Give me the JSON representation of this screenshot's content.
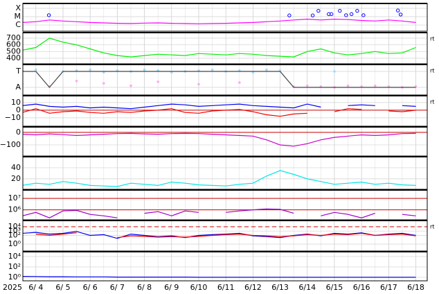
{
  "x_axis": {
    "year_label": "2025",
    "xlim": [
      -0.48,
      14.42
    ],
    "xticks": [
      {
        "value": 0,
        "label": "6/ 4"
      },
      {
        "value": 1,
        "label": "6/ 5"
      },
      {
        "value": 2,
        "label": "6/ 6"
      },
      {
        "value": 3,
        "label": "6/ 7"
      },
      {
        "value": 4,
        "label": "6/ 8"
      },
      {
        "value": 5,
        "label": "6/ 9"
      },
      {
        "value": 6,
        "label": "6/10"
      },
      {
        "value": 7,
        "label": "6/11"
      },
      {
        "value": 8,
        "label": "6/12"
      },
      {
        "value": 9,
        "label": "6/13"
      },
      {
        "value": 10,
        "label": "6/14"
      },
      {
        "value": 11,
        "label": "6/15"
      },
      {
        "value": 12,
        "label": "6/16"
      },
      {
        "value": 13,
        "label": "6/17"
      },
      {
        "value": 14,
        "label": "6/18"
      }
    ]
  },
  "chart_data": [
    {
      "type": "line",
      "log": true,
      "ylim": [
        1.8e-07,
        0.00038
      ],
      "yticks": [
        {
          "value": 0.0001,
          "label": "X"
        },
        {
          "value": 1e-05,
          "label": "M"
        },
        {
          "value": 1e-06,
          "label": "C"
        }
      ],
      "x": [
        -0.5,
        0,
        0.5,
        1,
        1.5,
        2,
        2.5,
        3,
        3.5,
        4,
        4.5,
        5,
        5.5,
        6,
        6.5,
        7,
        7.5,
        8,
        8.5,
        9,
        9.5,
        10,
        10.5,
        11,
        11.5,
        12,
        12.5,
        13,
        13.5,
        14
      ],
      "series": [
        {
          "type": "line",
          "color": "#ff00ff",
          "values": [
            2e-06,
            2.5e-06,
            4e-06,
            3e-06,
            2.5e-06,
            2e-06,
            1.8e-06,
            1.6e-06,
            1.5e-06,
            1.7e-06,
            1.8e-06,
            1.6e-06,
            1.5e-06,
            1.4e-06,
            1.5e-06,
            1.6e-06,
            1.8e-06,
            2e-06,
            2.5e-06,
            3e-06,
            4e-06,
            5e-06,
            4e-06,
            5e-06,
            4.5e-06,
            3.5e-06,
            3e-06,
            4e-06,
            3e-06,
            2e-06
          ]
        },
        {
          "type": "scatter",
          "color": "#0000ff",
          "x": [
            0.48,
            9.34,
            10.2,
            10.41,
            10.79,
            10.89,
            11.2,
            11.43,
            11.63,
            11.84,
            12.07,
            13.34,
            13.44
          ],
          "values": [
            1.5e-05,
            1.4e-05,
            1.4e-05,
            5e-05,
            2e-05,
            2e-05,
            5e-05,
            1.5e-05,
            2e-05,
            5e-05,
            1.5e-05,
            5.5e-05,
            1.8e-05
          ]
        }
      ]
    },
    {
      "type": "line",
      "corner_label": "rt",
      "ylim": [
        317,
        783
      ],
      "yticks": [
        700,
        600,
        500,
        400
      ],
      "x": [
        -0.5,
        0,
        0.5,
        1,
        1.5,
        2,
        2.5,
        3,
        3.5,
        4,
        4.5,
        5,
        5.5,
        6,
        6.5,
        7,
        7.5,
        8,
        8.5,
        9,
        9.5,
        10,
        10.5,
        11,
        11.5,
        12,
        12.5,
        13,
        13.5,
        14
      ],
      "series": [
        {
          "type": "line",
          "color": "#00ee00",
          "values": [
            520,
            560,
            700,
            640,
            600,
            540,
            480,
            440,
            420,
            440,
            460,
            450,
            440,
            470,
            460,
            450,
            470,
            460,
            440,
            430,
            420,
            500,
            540,
            480,
            450,
            470,
            500,
            470,
            480,
            560
          ]
        }
      ]
    },
    {
      "type": "line",
      "corner_label": "rt",
      "ylim": [
        -1.96,
        1.87
      ],
      "yticks": [
        {
          "value": 1,
          "label": "T"
        },
        {
          "value": -1,
          "label": "A"
        }
      ],
      "x": [
        -0.5,
        0,
        0.5,
        1,
        1.5,
        2,
        2.5,
        3,
        3.5,
        4,
        4.5,
        5,
        5.5,
        6,
        6.5,
        7,
        7.5,
        8,
        8.5,
        9,
        9.5,
        10,
        10.5,
        11,
        11.5,
        12,
        12.5,
        13,
        13.5,
        14
      ],
      "series": [
        {
          "type": "scatter",
          "color": "#99ddff",
          "values": [
            1.1,
            1.2,
            null,
            1.0,
            1.1,
            1.2,
            0.9,
            1.1,
            1.0,
            1.2,
            1.1,
            0.9,
            1.0,
            1.1,
            1.2,
            1.0,
            1.1,
            0.9,
            1.2,
            1.1,
            null,
            null,
            null,
            1.0,
            null,
            null,
            null,
            null,
            null,
            null
          ]
        },
        {
          "type": "scatter",
          "color": "#ffaaee",
          "values": [
            -0.6,
            null,
            -0.9,
            null,
            -0.2,
            null,
            -0.5,
            null,
            -0.8,
            null,
            -0.3,
            null,
            null,
            -0.6,
            null,
            null,
            -0.4,
            null,
            null,
            null,
            -0.9,
            -0.8,
            -0.9,
            -1.0,
            -0.8,
            -0.9,
            -0.8,
            -0.9,
            -1.0,
            -0.9
          ]
        },
        {
          "type": "line",
          "color": "#444444",
          "values": [
            1,
            1,
            -1,
            1,
            1,
            1,
            1,
            1,
            1,
            1,
            1,
            1,
            1,
            1,
            1,
            1,
            1,
            1,
            1,
            1,
            -1,
            -1,
            -1,
            -1,
            -1,
            -1,
            -1,
            -1,
            -1,
            -1
          ]
        }
      ]
    },
    {
      "type": "line",
      "corner_label": "rt",
      "ylim": [
        -21,
        19
      ],
      "yticks": [
        10,
        0,
        {
          "value": -10,
          "label": "−10"
        }
      ],
      "reference_lines": [
        {
          "value": 0,
          "color": "#cc0000"
        }
      ],
      "x": [
        -0.5,
        0,
        0.5,
        1,
        1.5,
        2,
        2.5,
        3,
        3.5,
        4,
        4.5,
        5,
        5.5,
        6,
        6.5,
        7,
        7.5,
        8,
        8.5,
        9,
        9.5,
        10,
        10.5,
        11,
        11.5,
        12,
        12.5,
        13,
        13.5,
        14
      ],
      "series": [
        {
          "type": "line",
          "color": "#0000ee",
          "values": [
            6,
            8,
            5,
            4,
            5,
            3,
            4,
            3,
            2,
            4,
            6,
            8,
            7,
            5,
            6,
            7,
            8,
            6,
            5,
            4,
            3,
            8,
            4,
            null,
            6,
            7,
            6,
            null,
            6,
            5
          ]
        },
        {
          "type": "line",
          "color": "#ee0000",
          "values": [
            -3,
            2,
            -4,
            -2,
            -1,
            -3,
            -4,
            -2,
            -3,
            -1,
            0,
            2,
            -3,
            -4,
            -1,
            0,
            1,
            -2,
            -6,
            -8,
            -5,
            -4,
            null,
            -2,
            2,
            1,
            null,
            -1,
            -2,
            0
          ]
        }
      ]
    },
    {
      "type": "line",
      "ylim": [
        -189,
        44
      ],
      "yticks": [
        0,
        {
          "value": -100,
          "label": "−100"
        }
      ],
      "reference_lines": [
        {
          "value": 0,
          "color": "#cc0000"
        }
      ],
      "x": [
        -0.5,
        0,
        0.5,
        1,
        1.5,
        2,
        2.5,
        3,
        3.5,
        4,
        4.5,
        5,
        5.5,
        6,
        6.5,
        7,
        7.5,
        8,
        8.5,
        9,
        9.5,
        10,
        10.5,
        11,
        11.5,
        12,
        12.5,
        13,
        13.5,
        14
      ],
      "series": [
        {
          "type": "line",
          "color": "#cc00cc",
          "values": [
            -15,
            -20,
            -12,
            -18,
            -25,
            -20,
            -15,
            -10,
            -8,
            -12,
            -15,
            -10,
            -8,
            -10,
            -15,
            -20,
            -25,
            -30,
            -60,
            -100,
            -110,
            -90,
            -60,
            -40,
            -30,
            -20,
            -25,
            -20,
            -10,
            -8
          ]
        }
      ]
    },
    {
      "type": "line",
      "ylim": [
        1,
        60
      ],
      "yticks": [
        40,
        20
      ],
      "x": [
        -0.5,
        0,
        0.5,
        1,
        1.5,
        2,
        2.5,
        3,
        3.5,
        4,
        4.5,
        5,
        5.5,
        6,
        6.5,
        7,
        7.5,
        8,
        8.5,
        9,
        9.5,
        10,
        10.5,
        11,
        11.5,
        12,
        12.5,
        13,
        13.5,
        14
      ],
      "series": [
        {
          "type": "line",
          "color": "#00e5e5",
          "values": [
            8,
            12,
            10,
            15,
            12,
            8,
            7,
            6,
            12,
            10,
            8,
            14,
            12,
            9,
            8,
            7,
            10,
            12,
            25,
            35,
            28,
            20,
            15,
            10,
            12,
            14,
            10,
            12,
            9,
            8
          ]
        }
      ]
    },
    {
      "type": "line",
      "log": true,
      "ylim": [
        135000,
        54000000
      ],
      "yticks": [
        {
          "value": 10000000,
          "label": "10⁷"
        },
        {
          "value": 1000000,
          "label": "10⁶"
        }
      ],
      "reference_lines": [
        {
          "value": 10000000,
          "color": "#cc0000"
        },
        {
          "value": 1000000,
          "color": "#cc0000"
        }
      ],
      "x": [
        -0.5,
        0,
        0.5,
        1,
        1.5,
        2,
        2.5,
        3,
        3.5,
        4,
        4.5,
        5,
        5.5,
        6,
        6.5,
        7,
        7.5,
        8,
        8.5,
        9,
        9.5,
        10,
        10.5,
        11,
        11.5,
        12,
        12.5,
        13,
        13.5,
        14
      ],
      "series": [
        {
          "type": "line",
          "color": "#9900cc",
          "values": [
            300000,
            600000,
            200000,
            800000,
            900000,
            400000,
            300000,
            200000,
            null,
            500000,
            700000,
            300000,
            800000,
            600000,
            null,
            600000,
            800000,
            1000000,
            1200000,
            1100000,
            500000,
            null,
            300000,
            600000,
            400000,
            200000,
            500000,
            null,
            400000,
            300000
          ]
        }
      ]
    },
    {
      "type": "line",
      "log": true,
      "corner_label": "rt",
      "ylim": [
        0.025,
        270000
      ],
      "yticks": [
        {
          "value": 10000,
          "label": "10⁴"
        },
        {
          "value": 1000,
          "label": "10³"
        },
        {
          "value": 100,
          "label": "10²"
        },
        {
          "value": 1,
          "label": "10⁰"
        }
      ],
      "reference_lines": [
        {
          "value": 10000,
          "color": "#cc0000",
          "dashed": true
        }
      ],
      "x": [
        -0.5,
        0,
        0.5,
        1,
        1.5,
        2,
        2.5,
        3,
        3.5,
        4,
        4.5,
        5,
        5.5,
        6,
        6.5,
        7,
        7.5,
        8,
        8.5,
        9,
        9.5,
        10,
        10.5,
        11,
        11.5,
        12,
        12.5,
        13,
        13.5,
        14
      ],
      "series": [
        {
          "type": "line",
          "color": "#0000ee",
          "values": [
            300,
            500,
            200,
            300,
            800,
            100,
            150,
            20,
            200,
            100,
            50,
            80,
            30,
            100,
            150,
            200,
            300,
            80,
            50,
            30,
            100,
            200,
            80,
            300,
            200,
            400,
            100,
            200,
            300,
            100
          ]
        },
        {
          "type": "line",
          "color": "#ee0000",
          "values": [
            null,
            200,
            100,
            200,
            400,
            null,
            null,
            30,
            80,
            60,
            40,
            50,
            40,
            60,
            100,
            150,
            200,
            100,
            80,
            50,
            80,
            150,
            100,
            200,
            150,
            300,
            100,
            150,
            200,
            80
          ]
        }
      ]
    },
    {
      "type": "line",
      "log": true,
      "ylim": [
        0.21,
        85000
      ],
      "yticks": [
        {
          "value": 10000,
          "label": "10⁴"
        },
        {
          "value": 100,
          "label": "10²"
        },
        {
          "value": 1,
          "label": "10⁰"
        }
      ],
      "x": [
        -0.5,
        0,
        0.5,
        1,
        1.5,
        2,
        2.5,
        3,
        3.5,
        4,
        4.5,
        5,
        5.5,
        6,
        6.5,
        7,
        7.5,
        8,
        8.5,
        9,
        9.5,
        10,
        10.5,
        11,
        11.5,
        12,
        12.5,
        13,
        13.5,
        14
      ],
      "series": [
        {
          "type": "line",
          "color": "#0000ee",
          "values": [
            1.5,
            1.4,
            1.3,
            1.3,
            1.2,
            1.2,
            1.2,
            1.1,
            1.1,
            1.1,
            1.1,
            1.1,
            1.1,
            1,
            1,
            1,
            1,
            1,
            1,
            1,
            1,
            1,
            1,
            1,
            1,
            1,
            1,
            1,
            1,
            1
          ]
        }
      ]
    }
  ]
}
